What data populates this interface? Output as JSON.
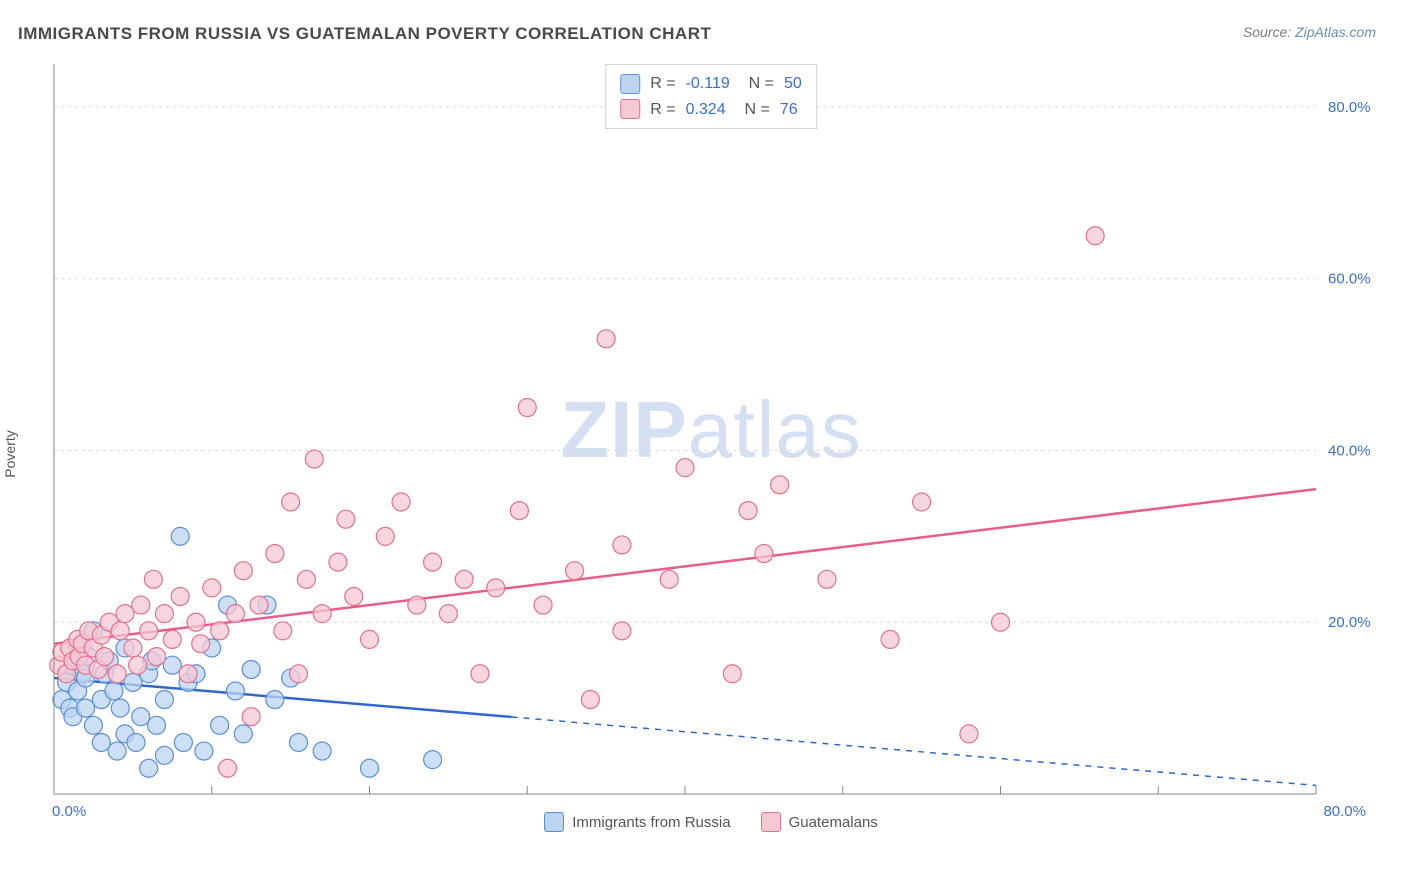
{
  "title": "IMMIGRANTS FROM RUSSIA VS GUATEMALAN POVERTY CORRELATION CHART",
  "source_label": "Source:",
  "source_name": "ZipAtlas.com",
  "ylabel": "Poverty",
  "watermark_bold": "ZIP",
  "watermark_rest": "atlas",
  "chart": {
    "type": "scatter",
    "xlim": [
      0,
      80
    ],
    "ylim": [
      0,
      85
    ],
    "x_start_label": "0.0%",
    "x_end_label": "80.0%",
    "yticks": [
      20,
      40,
      60,
      80
    ],
    "ytick_labels": [
      "20.0%",
      "40.0%",
      "60.0%",
      "80.0%"
    ],
    "xticks_minor": [
      0,
      10,
      20,
      30,
      40,
      50,
      60,
      70,
      80
    ],
    "background_color": "#ffffff",
    "grid_color": "#d9d9d9",
    "axis_color": "#888888",
    "marker_radius": 9,
    "marker_stroke_width": 1.2,
    "line_width": 2.5,
    "series": [
      {
        "name": "Immigrants from Russia",
        "fill": "#bcd4f0",
        "stroke": "#5a8fd6",
        "line_color": "#2f68c9",
        "r_value": "-0.119",
        "n_value": "50",
        "trend": {
          "x1": 0,
          "y1": 13.5,
          "x2": 80,
          "y2": 1.0,
          "solid_until_x": 29
        },
        "points": [
          [
            0.5,
            11
          ],
          [
            0.8,
            13
          ],
          [
            1,
            10
          ],
          [
            1.2,
            15
          ],
          [
            1.2,
            9
          ],
          [
            1.5,
            12
          ],
          [
            1.5,
            17
          ],
          [
            1.8,
            14
          ],
          [
            2,
            10
          ],
          [
            2,
            13.5
          ],
          [
            2.2,
            16
          ],
          [
            2.5,
            8
          ],
          [
            2.5,
            19
          ],
          [
            3,
            11
          ],
          [
            3,
            6
          ],
          [
            3.2,
            14
          ],
          [
            3.5,
            15.5
          ],
          [
            3.8,
            12
          ],
          [
            4,
            5
          ],
          [
            4.2,
            10
          ],
          [
            4.5,
            7
          ],
          [
            4.5,
            17
          ],
          [
            5,
            13
          ],
          [
            5.2,
            6
          ],
          [
            5.5,
            9
          ],
          [
            6,
            3
          ],
          [
            6,
            14
          ],
          [
            6.2,
            15.5
          ],
          [
            6.5,
            8
          ],
          [
            7,
            4.5
          ],
          [
            7,
            11
          ],
          [
            7.5,
            15
          ],
          [
            8,
            30
          ],
          [
            8.2,
            6
          ],
          [
            8.5,
            13
          ],
          [
            9,
            14
          ],
          [
            9.5,
            5
          ],
          [
            10,
            17
          ],
          [
            10.5,
            8
          ],
          [
            11,
            22
          ],
          [
            11.5,
            12
          ],
          [
            12,
            7
          ],
          [
            12.5,
            14.5
          ],
          [
            13.5,
            22
          ],
          [
            14,
            11
          ],
          [
            15,
            13.5
          ],
          [
            15.5,
            6
          ],
          [
            17,
            5
          ],
          [
            20,
            3
          ],
          [
            24,
            4
          ]
        ]
      },
      {
        "name": "Guatemalans",
        "fill": "#f6c8d4",
        "stroke": "#e2718e",
        "line_color": "#e75f88",
        "r_value": "0.324",
        "n_value": "76",
        "trend": {
          "x1": 0,
          "y1": 17.5,
          "x2": 80,
          "y2": 35.5,
          "solid_until_x": 80
        },
        "points": [
          [
            0.3,
            15
          ],
          [
            0.5,
            16.5
          ],
          [
            0.8,
            14
          ],
          [
            1,
            17
          ],
          [
            1.2,
            15.5
          ],
          [
            1.5,
            18
          ],
          [
            1.6,
            16
          ],
          [
            1.8,
            17.5
          ],
          [
            2,
            15
          ],
          [
            2.2,
            19
          ],
          [
            2.5,
            17
          ],
          [
            2.8,
            14.5
          ],
          [
            3,
            18.5
          ],
          [
            3.2,
            16
          ],
          [
            3.5,
            20
          ],
          [
            4,
            14
          ],
          [
            4.2,
            19
          ],
          [
            4.5,
            21
          ],
          [
            5,
            17
          ],
          [
            5.3,
            15
          ],
          [
            5.5,
            22
          ],
          [
            6,
            19
          ],
          [
            6.3,
            25
          ],
          [
            6.5,
            16
          ],
          [
            7,
            21
          ],
          [
            7.5,
            18
          ],
          [
            8,
            23
          ],
          [
            8.5,
            14
          ],
          [
            9,
            20
          ],
          [
            9.3,
            17.5
          ],
          [
            10,
            24
          ],
          [
            10.5,
            19
          ],
          [
            11,
            3
          ],
          [
            11.5,
            21
          ],
          [
            12,
            26
          ],
          [
            12.5,
            9
          ],
          [
            13,
            22
          ],
          [
            14,
            28
          ],
          [
            14.5,
            19
          ],
          [
            15,
            34
          ],
          [
            15.5,
            14
          ],
          [
            16,
            25
          ],
          [
            16.5,
            39
          ],
          [
            17,
            21
          ],
          [
            18,
            27
          ],
          [
            18.5,
            32
          ],
          [
            19,
            23
          ],
          [
            20,
            18
          ],
          [
            21,
            30
          ],
          [
            22,
            34
          ],
          [
            23,
            22
          ],
          [
            24,
            27
          ],
          [
            25,
            21
          ],
          [
            26,
            25
          ],
          [
            27,
            14
          ],
          [
            28,
            24
          ],
          [
            29.5,
            33
          ],
          [
            30,
            45
          ],
          [
            31,
            22
          ],
          [
            33,
            26
          ],
          [
            34,
            11
          ],
          [
            35,
            53
          ],
          [
            36,
            19
          ],
          [
            36,
            29
          ],
          [
            39,
            25
          ],
          [
            40,
            38
          ],
          [
            43,
            14
          ],
          [
            44,
            33
          ],
          [
            45,
            28
          ],
          [
            46,
            36
          ],
          [
            49,
            25
          ],
          [
            53,
            18
          ],
          [
            55,
            34
          ],
          [
            58,
            7
          ],
          [
            60,
            20
          ],
          [
            66,
            65
          ]
        ]
      }
    ]
  },
  "legend_bottom": [
    {
      "label": "Immigrants from Russia",
      "fill": "#bcd4f0",
      "stroke": "#5a8fd6"
    },
    {
      "label": "Guatemalans",
      "fill": "#f6c8d4",
      "stroke": "#e2718e"
    }
  ]
}
